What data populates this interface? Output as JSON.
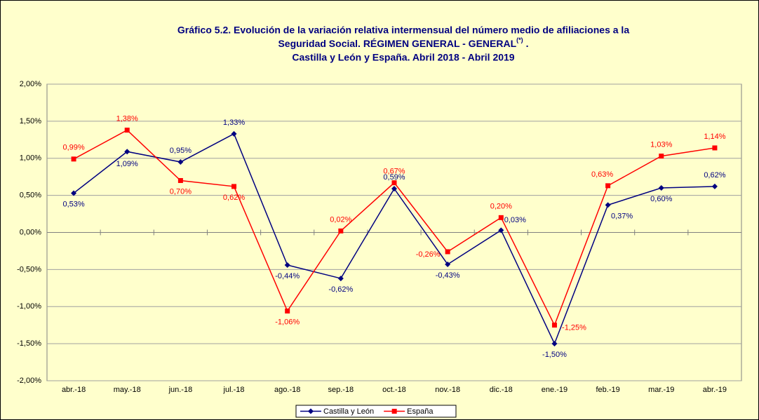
{
  "chart_data": {
    "type": "line",
    "title": [
      "Gráfico 5.2. Evolución de la variación relativa intermensual del número medio de afiliaciones a la",
      "Seguridad Social. RÉGIMEN GENERAL - GENERAL",
      "Castilla y León y España. Abril 2018 - Abril 2019"
    ],
    "title_superscript": "(*)",
    "title_suffix": ".",
    "categories": [
      "abr.-18",
      "may.-18",
      "jun.-18",
      "jul.-18",
      "ago.-18",
      "sep.-18",
      "oct.-18",
      "nov.-18",
      "dic.-18",
      "ene.-19",
      "feb.-19",
      "mar.-19",
      "abr.-19"
    ],
    "series": [
      {
        "name": "Castilla y León",
        "color": "#000080",
        "values": [
          0.53,
          1.09,
          0.95,
          1.33,
          -0.44,
          -0.62,
          0.59,
          -0.43,
          0.03,
          -1.5,
          0.37,
          0.6,
          0.62
        ],
        "value_labels": [
          "0,53%",
          "1,09%",
          "0,95%",
          "1,33%",
          "-0,44%",
          "-0,62%",
          "0,59%",
          "-0,43%",
          "0,03%",
          "-1,50%",
          "0,37%",
          "0,60%",
          "0,62%"
        ]
      },
      {
        "name": "España",
        "color": "#ff0000",
        "values": [
          0.99,
          1.38,
          0.7,
          0.62,
          -1.06,
          0.02,
          0.67,
          -0.26,
          0.2,
          -1.25,
          0.63,
          1.03,
          1.14
        ],
        "value_labels": [
          "0,99%",
          "1,38%",
          "0,70%",
          "0,62%",
          "-1,06%",
          "0,02%",
          "0,67%",
          "-0,26%",
          "0,20%",
          "-1,25%",
          "0,63%",
          "1,03%",
          "1,14%"
        ]
      }
    ],
    "ylim": [
      -2,
      2
    ],
    "yticks": [
      {
        "value": -2,
        "label": "-2,00%"
      },
      {
        "value": -1.5,
        "label": "-1,50%"
      },
      {
        "value": -1,
        "label": "-1,00%"
      },
      {
        "value": -0.5,
        "label": "-0,50%"
      },
      {
        "value": 0,
        "label": "0,00%"
      },
      {
        "value": 0.5,
        "label": "0,50%"
      },
      {
        "value": 1,
        "label": "1,00%"
      },
      {
        "value": 1.5,
        "label": "1,50%"
      },
      {
        "value": 2,
        "label": "2,00%"
      }
    ],
    "grid": true,
    "legend": "bottom"
  }
}
